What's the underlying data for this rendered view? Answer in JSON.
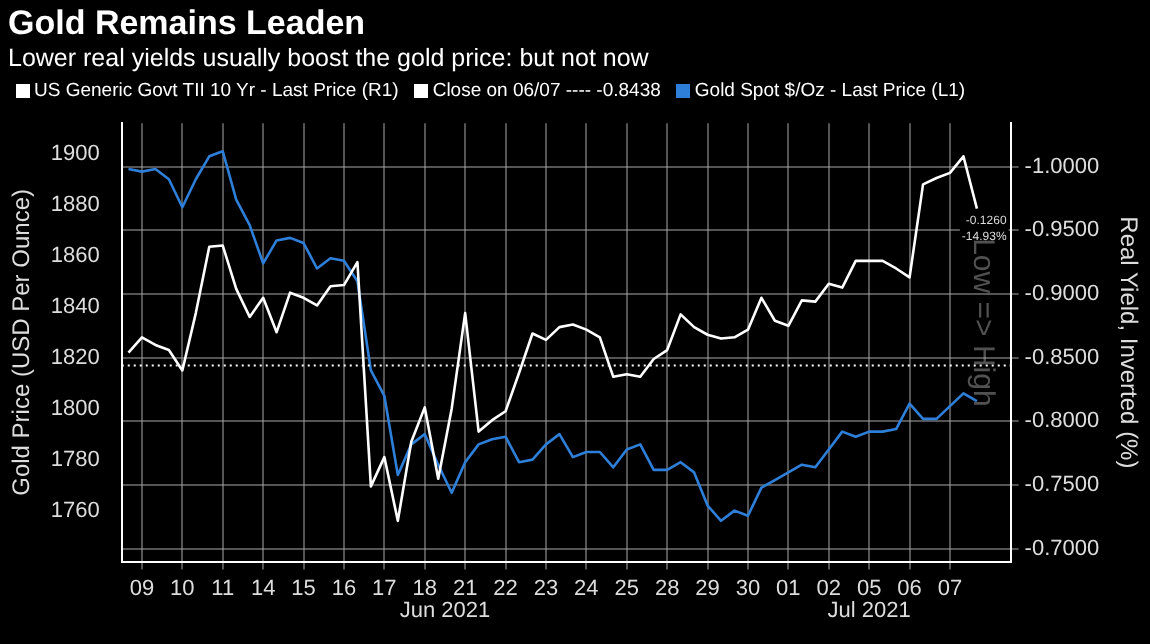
{
  "chart_data": {
    "type": "line",
    "title": "Gold Remains Leaden",
    "subtitle": "Lower real yields usually boost the gold price: but not now",
    "ylabel": "Gold Price (USD Per Ounce)",
    "y2label": "Real Yield, Inverted (%)",
    "categories": [
      null,
      "09",
      null,
      null,
      "10",
      null,
      null,
      "11",
      null,
      null,
      "14",
      null,
      null,
      "15",
      null,
      null,
      "16",
      null,
      null,
      "17",
      null,
      null,
      "18",
      null,
      null,
      "21",
      null,
      null,
      "22",
      null,
      null,
      "23",
      null,
      null,
      "24",
      null,
      null,
      "25",
      null,
      null,
      "28",
      null,
      null,
      "29",
      null,
      null,
      "30",
      null,
      null,
      "01",
      null,
      null,
      "02",
      null,
      null,
      "05",
      null,
      null,
      "06",
      null,
      null,
      "07",
      null,
      null,
      null,
      null
    ],
    "ylim": [
      1740,
      1912
    ],
    "yticks": [
      1760,
      1780,
      1800,
      1820,
      1840,
      1860,
      1880,
      1900
    ],
    "y2lim": [
      -0.69,
      -1.034
    ],
    "y2ticks": [
      {
        "value": -1,
        "label": "-1.0000"
      },
      {
        "value": -0.95,
        "label": "-0.9500"
      },
      {
        "value": -0.9,
        "label": "-0.9000"
      },
      {
        "value": -0.85,
        "label": "-0.8500"
      },
      {
        "value": -0.8,
        "label": "-0.8000"
      },
      {
        "value": -0.75,
        "label": "-0.7500"
      },
      {
        "value": -0.7,
        "label": "-0.7000"
      }
    ],
    "grid": true,
    "legend": "top",
    "marker": "none",
    "line_style": "solid",
    "ref_lines": [
      {
        "axis": "y2",
        "value": -0.8438,
        "label": "Close on 06/07 ---- -0.8438",
        "color": "#ffffff",
        "line_style": "dotted"
      }
    ],
    "annotations": [
      "-0.1260",
      "-14.93%",
      "Jun 2021",
      "Jul 2021",
      "Low => High"
    ],
    "series": [
      {
        "name": "US Generic Govt TII 10 Yr - Last Price (R1)",
        "color": "#ffffff",
        "axis": "y2",
        "values": [
          -0.854,
          -0.866,
          -0.86,
          -0.856,
          -0.84,
          -0.885,
          -0.937,
          -0.938,
          -0.904,
          -0.882,
          -0.897,
          -0.87,
          -0.901,
          -0.897,
          -0.891,
          -0.906,
          -0.907,
          -0.925,
          -0.749,
          -0.772,
          -0.722,
          -0.784,
          -0.811,
          -0.755,
          -0.81,
          -0.885,
          -0.792,
          -0.801,
          -0.808,
          -0.838,
          -0.869,
          -0.864,
          -0.874,
          -0.876,
          -0.872,
          -0.866,
          -0.835,
          -0.837,
          -0.835,
          -0.849,
          -0.856,
          -0.884,
          -0.874,
          -0.868,
          -0.865,
          -0.866,
          -0.872,
          -0.897,
          -0.879,
          -0.875,
          -0.895,
          -0.894,
          -0.908,
          -0.905,
          -0.926,
          -0.926,
          -0.926,
          -0.92,
          -0.913,
          -0.986,
          -0.991,
          -0.995,
          -1.008,
          -0.967,
          null,
          null
        ]
      },
      {
        "name": "Gold Spot $/Oz - Last Price (L1)",
        "color": "#2e7fd9",
        "values": [
          1894,
          1893,
          1894,
          1890,
          1879,
          1890,
          1899,
          1901,
          1882,
          1872,
          1857,
          1866,
          1867,
          1865,
          1855,
          1859,
          1858,
          1850,
          1815,
          1805,
          1774,
          1786,
          1790,
          1778,
          1767,
          1779,
          1786,
          1788,
          1789,
          1779,
          1780,
          1786,
          1790,
          1781,
          1783,
          1783,
          1777,
          1784,
          1786,
          1776,
          1776,
          1779,
          1775,
          1762,
          1756,
          1760,
          1758,
          1769,
          1772,
          1775,
          1778,
          1777,
          1784,
          1791,
          1789,
          1791,
          1791,
          1792,
          1802,
          1796,
          1796,
          1801,
          1806,
          1803,
          null,
          null
        ]
      }
    ]
  }
}
